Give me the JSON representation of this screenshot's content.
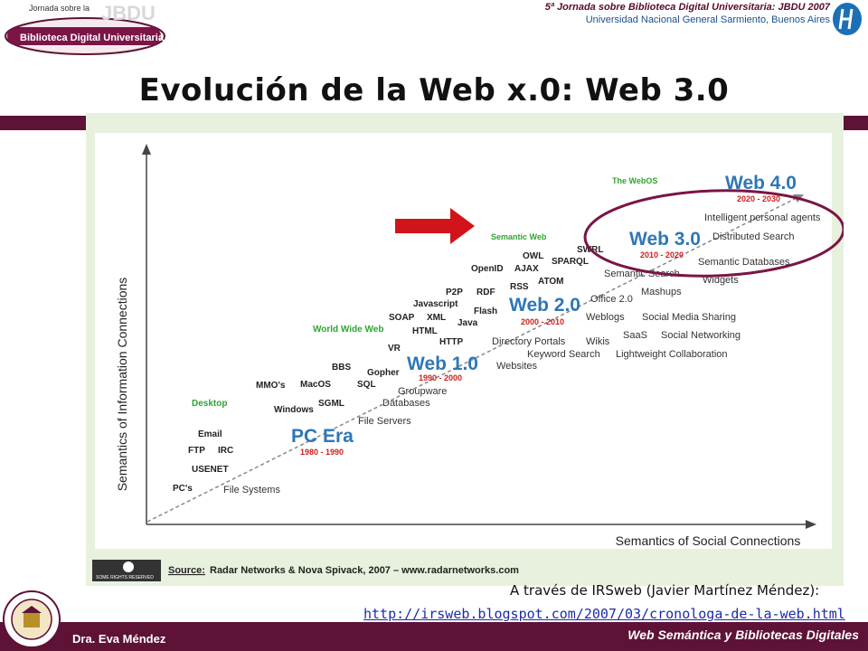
{
  "header": {
    "logo_small": "Jornada sobre la",
    "logo_big": "JBDU",
    "logo_main": "Biblioteca Digital Universitaria",
    "event": "5ª Jornada sobre Biblioteca Digital Universitaria: JBDU 2007",
    "venue": "Universidad Nacional General Sarmiento, Buenos Aires",
    "title": "Evolución de la Web x.0: Web 3.0"
  },
  "colors": {
    "maroon": "#5e1236",
    "web_blue": "#2e77b7",
    "era_red": "#cc1f1f",
    "green_label": "#2fa52f",
    "highlight_circle": "#7a1546",
    "arrow_red": "#d0141a"
  },
  "diagram": {
    "y_axis": "Semantics of Information Connections",
    "x_axis": "Semantics of Social Connections",
    "eras": [
      {
        "name": "PC Era",
        "years": "1980 - 1990"
      },
      {
        "name": "Web 1.0",
        "years": "1990 - 2000"
      },
      {
        "name": "Web 2.0",
        "years": "2000 - 2010"
      },
      {
        "name": "Web 3.0",
        "years": "2010 - 2020"
      },
      {
        "name": "Web 4.0",
        "years": "2020 - 2030"
      }
    ],
    "green_labels": [
      "Desktop",
      "World Wide Web",
      "Semantic Web",
      "The WebOS"
    ],
    "tech_labels": [
      "PC's",
      "USENET",
      "FTP",
      "IRC",
      "Email",
      "Windows",
      "MMO's",
      "MacOS",
      "SGML",
      "BBS",
      "Gopher",
      "SQL",
      "VR",
      "HTML",
      "HTTP",
      "XML",
      "SOAP",
      "Javascript",
      "P2P",
      "Java",
      "Flash",
      "RDF",
      "RSS",
      "OpenID",
      "AJAX",
      "OWL",
      "ATOM",
      "SPARQL",
      "SWRL"
    ],
    "app_labels": [
      "File Systems",
      "File Servers",
      "Databases",
      "Groupware",
      "Websites",
      "Keyword Search",
      "Directory Portals",
      "Wikis",
      "Lightweight Collaboration",
      "SaaS",
      "Social Networking",
      "Weblogs",
      "Social Media Sharing",
      "Office 2.0",
      "Mashups",
      "Semantic Search",
      "Widgets",
      "Semantic Databases",
      "Distributed Search",
      "Intelligent personal agents"
    ],
    "source_label": "Source:",
    "source_text": "Radar Networks & Nova Spivack, 2007 – www.radarnetworks.com",
    "cc_text": "SOME RIGHTS RESERVED"
  },
  "credit": "A través de IRSweb (Javier Martínez Méndez):",
  "url": "http://irsweb.blogspot.com/2007/03/cronologa-de-la-web.html",
  "footer": {
    "author": "Dra. Eva Méndez",
    "subject": "Web Semántica y Bibliotecas Digitales"
  }
}
